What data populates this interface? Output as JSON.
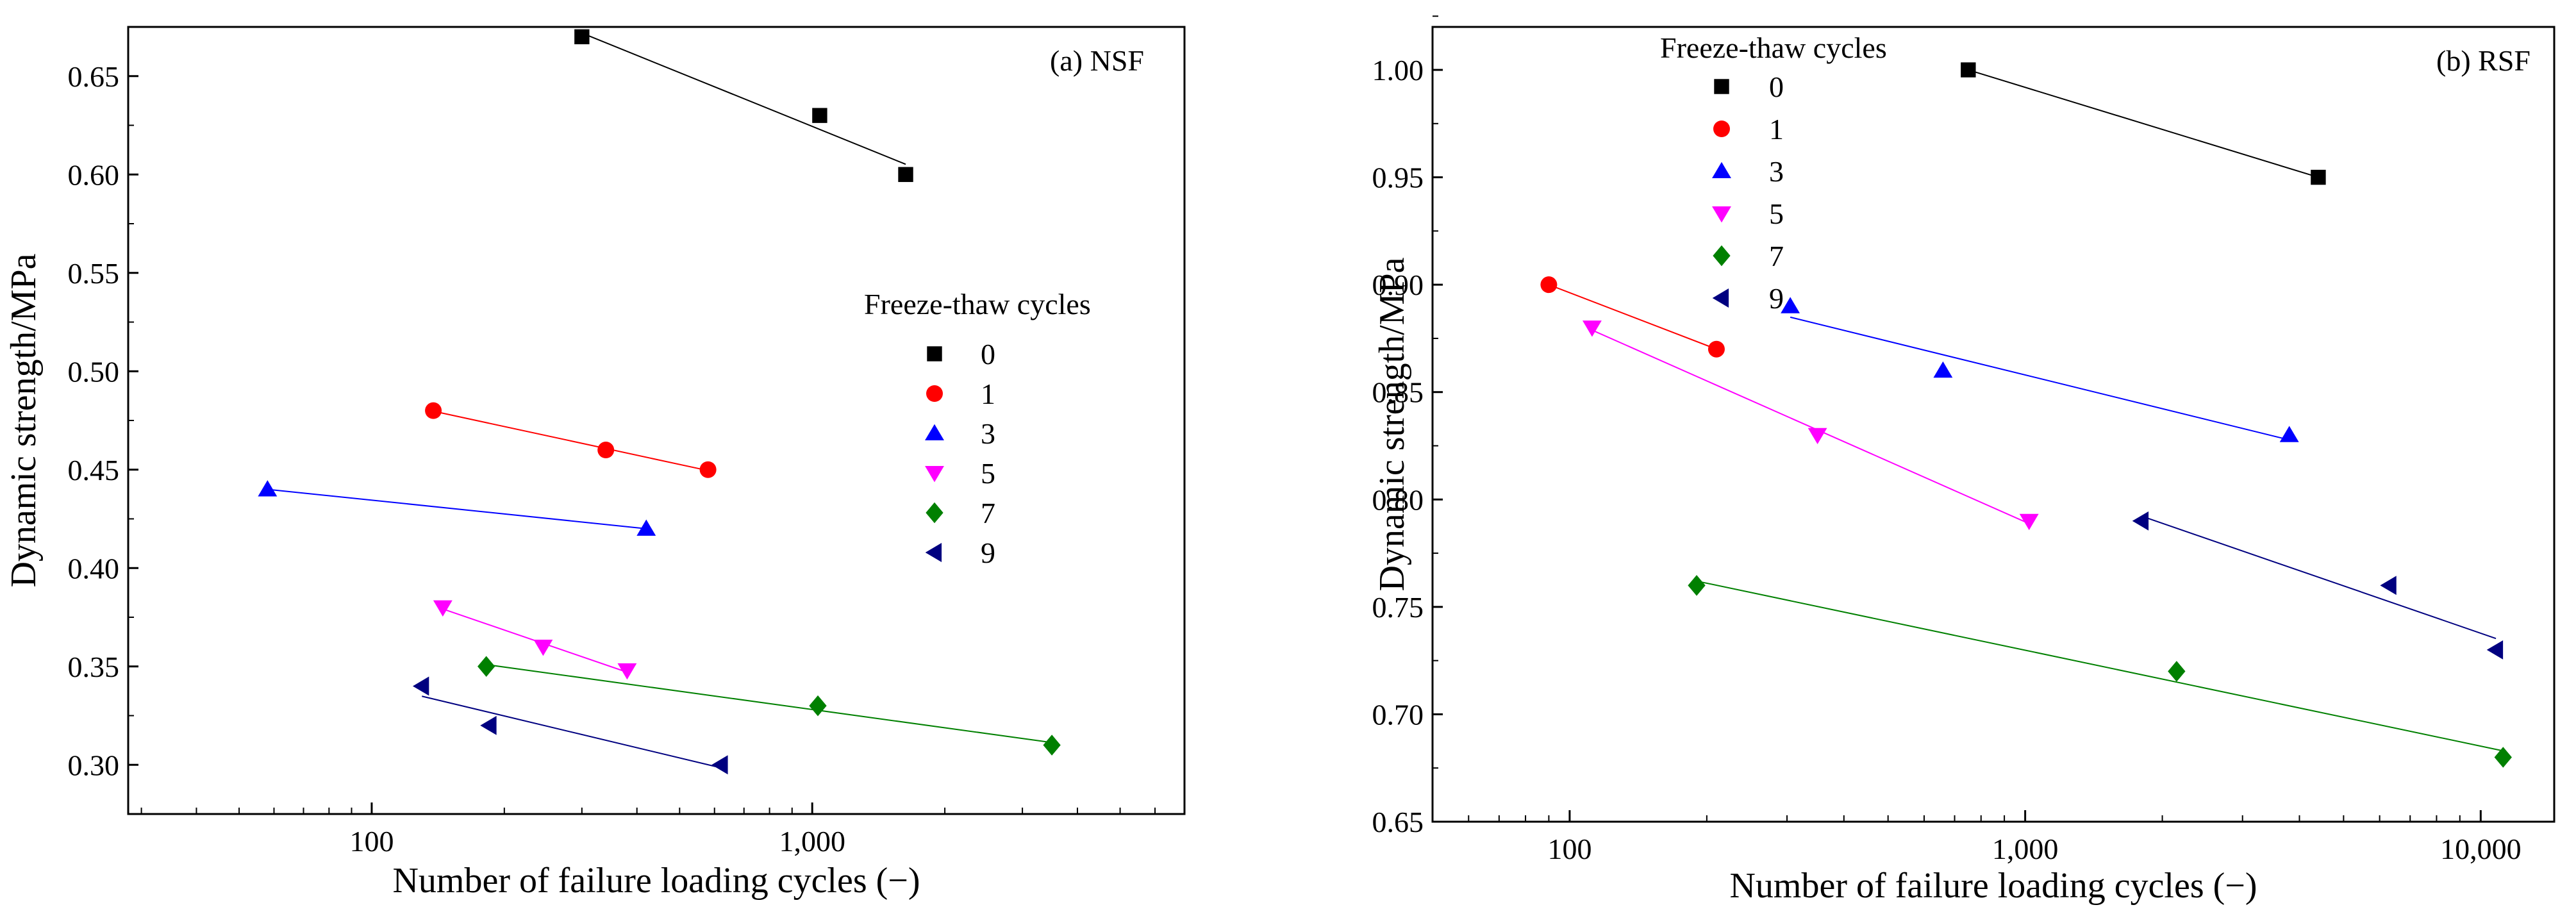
{
  "chart_data": [
    {
      "type": "scatter",
      "panel_label": "(a) NSF",
      "xscale": "log",
      "xlabel": "Number of failure loading cycles (−)",
      "ylabel": "Dynamic strength/MPa",
      "xlim": [
        28,
        7000
      ],
      "ylim": [
        0.275,
        0.675
      ],
      "x_ticks": [
        100,
        1000
      ],
      "x_tick_labels": [
        "100",
        "1,000"
      ],
      "y_ticks": [
        0.3,
        0.35,
        0.4,
        0.45,
        0.5,
        0.55,
        0.6,
        0.65
      ],
      "y_tick_labels": [
        "0.30",
        "0.35",
        "0.40",
        "0.45",
        "0.50",
        "0.55",
        "0.60",
        "0.65"
      ],
      "legend_title": "Freeze-thaw cycles",
      "legend_position": "center-right",
      "series": [
        {
          "name": "0",
          "marker": "square",
          "color": "#000000",
          "points": [
            [
              300,
              0.67
            ],
            [
              1040,
              0.63
            ],
            [
              1630,
              0.6
            ]
          ]
        },
        {
          "name": "1",
          "marker": "circle",
          "color": "#ff0000",
          "points": [
            [
              138,
              0.48
            ],
            [
              340,
              0.46
            ],
            [
              580,
              0.45
            ]
          ]
        },
        {
          "name": "3",
          "marker": "triangle-up",
          "color": "#0000ff",
          "points": [
            [
              58,
              0.44
            ],
            [
              420,
              0.42
            ]
          ]
        },
        {
          "name": "5",
          "marker": "triangle-down",
          "color": "#ff00ff",
          "points": [
            [
              145,
              0.38
            ],
            [
              245,
              0.36
            ],
            [
              380,
              0.348
            ]
          ]
        },
        {
          "name": "7",
          "marker": "diamond",
          "color": "#008000",
          "points": [
            [
              182,
              0.35
            ],
            [
              1030,
              0.33
            ],
            [
              3500,
              0.31
            ]
          ]
        },
        {
          "name": "9",
          "marker": "triangle-left",
          "color": "#000080",
          "points": [
            [
              130,
              0.34
            ],
            [
              185,
              0.32
            ],
            [
              620,
              0.3
            ]
          ]
        }
      ]
    },
    {
      "type": "scatter",
      "panel_label": "(b) RSF",
      "xscale": "log",
      "xlabel": "Number of failure loading cycles (−)",
      "ylabel": "Dynamic strength/MPa",
      "xlim": [
        50,
        14500
      ],
      "ylim": [
        0.65,
        1.02
      ],
      "x_ticks": [
        100,
        1000,
        10000
      ],
      "x_tick_labels": [
        "100",
        "1,000",
        "10,000"
      ],
      "y_ticks": [
        0.65,
        0.7,
        0.75,
        0.8,
        0.85,
        0.9,
        0.95,
        1.0
      ],
      "y_tick_labels": [
        "0.65",
        "0.70",
        "0.75",
        "0.80",
        "0.85",
        "0.90",
        "0.95",
        "1.00"
      ],
      "legend_title": "Freeze-thaw cycles",
      "legend_position": "top-left",
      "series": [
        {
          "name": "0",
          "marker": "square",
          "color": "#000000",
          "points": [
            [
              750,
              1.0
            ],
            [
              4400,
              0.95
            ]
          ]
        },
        {
          "name": "1",
          "marker": "circle",
          "color": "#ff0000",
          "points": [
            [
              90,
              0.9
            ],
            [
              210,
              0.87
            ]
          ]
        },
        {
          "name": "3",
          "marker": "triangle-up",
          "color": "#0000ff",
          "points": [
            [
              305,
              0.89
            ],
            [
              660,
              0.86
            ],
            [
              3800,
              0.83
            ]
          ]
        },
        {
          "name": "5",
          "marker": "triangle-down",
          "color": "#ff00ff",
          "points": [
            [
              112,
              0.88
            ],
            [
              350,
              0.83
            ],
            [
              1020,
              0.79
            ]
          ]
        },
        {
          "name": "7",
          "marker": "diamond",
          "color": "#008000",
          "points": [
            [
              190,
              0.76
            ],
            [
              2150,
              0.72
            ],
            [
              11200,
              0.68
            ]
          ]
        },
        {
          "name": "9",
          "marker": "triangle-left",
          "color": "#000080",
          "points": [
            [
              1800,
              0.79
            ],
            [
              6300,
              0.76
            ],
            [
              10800,
              0.73
            ]
          ]
        }
      ]
    }
  ]
}
